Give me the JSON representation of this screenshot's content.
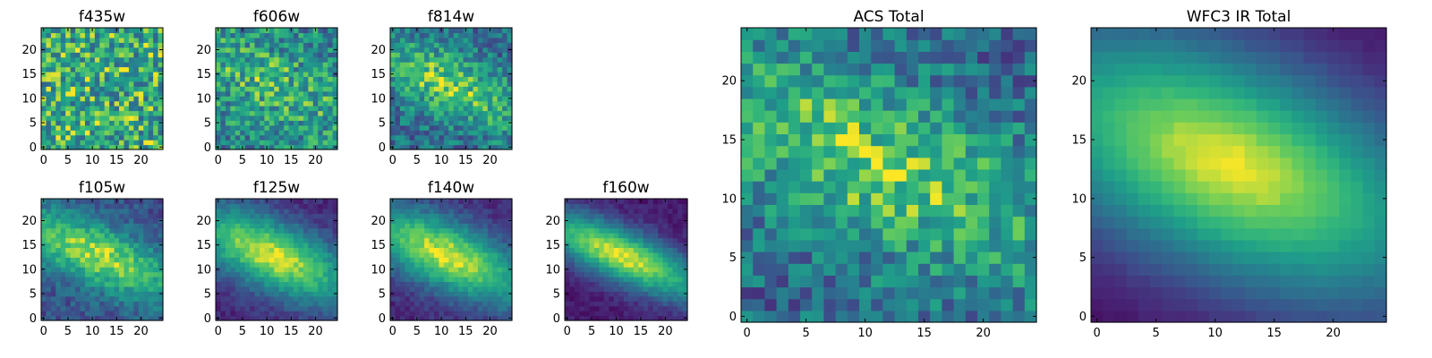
{
  "chart_data": [
    {
      "type": "heatmap",
      "title": "f435w",
      "grid": [
        25,
        25
      ],
      "xlim": [
        0,
        25
      ],
      "ylim": [
        0,
        25
      ],
      "xticks": [
        0,
        5,
        10,
        15,
        20
      ],
      "yticks": [
        0,
        5,
        10,
        15,
        20
      ],
      "pattern": "noise",
      "colormap": "viridis"
    },
    {
      "type": "heatmap",
      "title": "f606w",
      "grid": [
        25,
        25
      ],
      "xlim": [
        0,
        25
      ],
      "ylim": [
        0,
        25
      ],
      "xticks": [
        0,
        5,
        10,
        15,
        20
      ],
      "yticks": [
        0,
        5,
        10,
        15,
        20
      ],
      "pattern": "noise-faint-band",
      "colormap": "viridis"
    },
    {
      "type": "heatmap",
      "title": "f814w",
      "grid": [
        25,
        25
      ],
      "xlim": [
        0,
        25
      ],
      "ylim": [
        0,
        25
      ],
      "xticks": [
        0,
        5,
        10,
        15,
        20
      ],
      "yticks": [
        0,
        5,
        10,
        15,
        20
      ],
      "pattern": "noise-band",
      "colormap": "viridis"
    },
    {
      "type": "heatmap",
      "title": "f105w",
      "grid": [
        25,
        25
      ],
      "xlim": [
        0,
        25
      ],
      "ylim": [
        0,
        25
      ],
      "xticks": [
        0,
        5,
        10,
        15,
        20
      ],
      "yticks": [
        0,
        5,
        10,
        15,
        20
      ],
      "pattern": "band-noisy",
      "colormap": "viridis"
    },
    {
      "type": "heatmap",
      "title": "f125w",
      "grid": [
        25,
        25
      ],
      "xlim": [
        0,
        25
      ],
      "ylim": [
        0,
        25
      ],
      "xticks": [
        0,
        5,
        10,
        15,
        20
      ],
      "yticks": [
        0,
        5,
        10,
        15,
        20
      ],
      "pattern": "band",
      "colormap": "viridis"
    },
    {
      "type": "heatmap",
      "title": "f140w",
      "grid": [
        25,
        25
      ],
      "xlim": [
        0,
        25
      ],
      "ylim": [
        0,
        25
      ],
      "xticks": [
        0,
        5,
        10,
        15,
        20
      ],
      "yticks": [
        0,
        5,
        10,
        15,
        20
      ],
      "pattern": "band",
      "colormap": "viridis"
    },
    {
      "type": "heatmap",
      "title": "f160w",
      "grid": [
        25,
        25
      ],
      "xlim": [
        0,
        25
      ],
      "ylim": [
        0,
        25
      ],
      "xticks": [
        0,
        5,
        10,
        15,
        20
      ],
      "yticks": [
        0,
        5,
        10,
        15,
        20
      ],
      "pattern": "band-narrow",
      "colormap": "viridis"
    },
    {
      "type": "heatmap",
      "title": "ACS Total",
      "grid": [
        25,
        25
      ],
      "xlim": [
        0,
        25
      ],
      "ylim": [
        0,
        25
      ],
      "xticks": [
        0,
        5,
        10,
        15,
        20
      ],
      "yticks": [
        0,
        5,
        10,
        15,
        20
      ],
      "pattern": "noise-band",
      "colormap": "viridis"
    },
    {
      "type": "heatmap",
      "title": "WFC3 IR Total",
      "grid": [
        25,
        25
      ],
      "xlim": [
        0,
        25
      ],
      "ylim": [
        0,
        25
      ],
      "xticks": [
        0,
        5,
        10,
        15,
        20
      ],
      "yticks": [
        0,
        5,
        10,
        15,
        20
      ],
      "pattern": "smooth-band",
      "colormap": "viridis"
    }
  ]
}
